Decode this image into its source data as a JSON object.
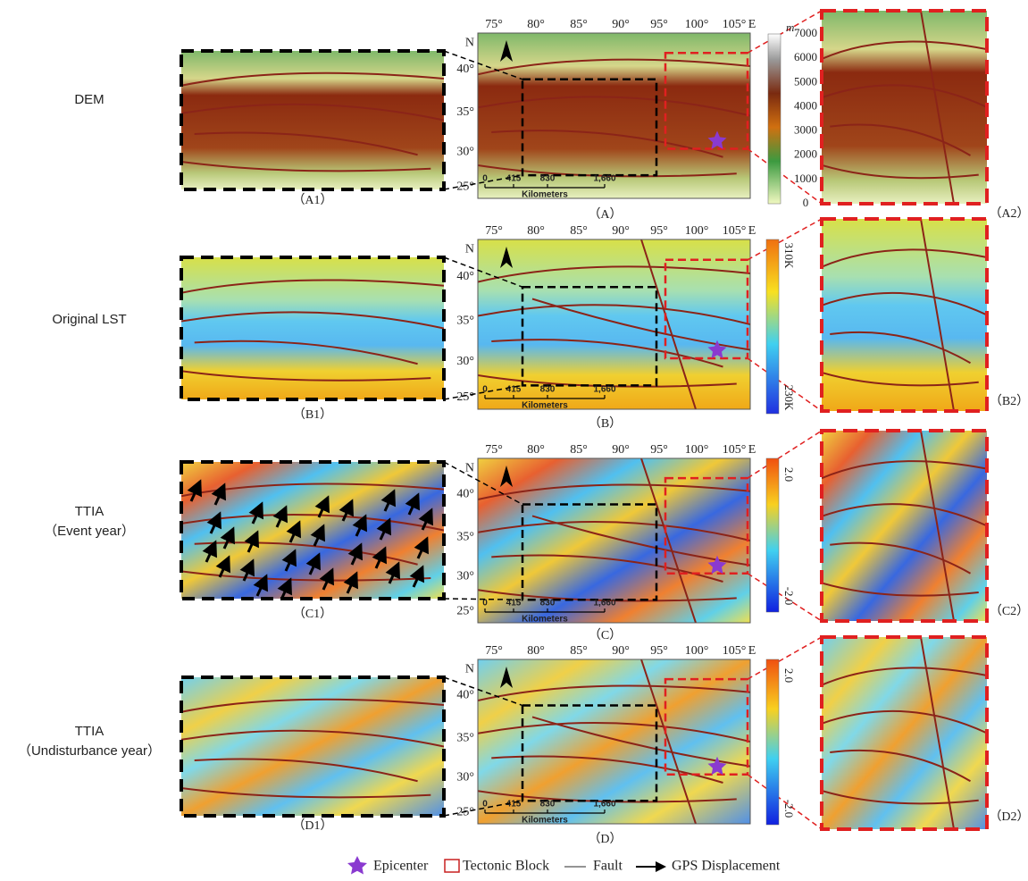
{
  "map_axes": {
    "longitudes": [
      "75°",
      "80°",
      "85°",
      "90°",
      "95°",
      "100°",
      "105°",
      "E"
    ],
    "latitudes": [
      "N",
      "40°",
      "35°",
      "30°",
      "25°"
    ],
    "scale_bar": [
      "0",
      "415",
      "830",
      "1,660"
    ],
    "scale_unit": "Kilometers"
  },
  "rows": [
    {
      "label": [
        "DEM"
      ],
      "left_caption": "（A1）",
      "center_caption": "（A）",
      "right_caption": "（A2）",
      "colorbar_unit": "m",
      "colorbar_labels": [
        "7000",
        "6000",
        "5000",
        "4000",
        "3000",
        "2000",
        "1000",
        "0"
      ]
    },
    {
      "label": [
        "Original LST"
      ],
      "left_caption": "（B1）",
      "center_caption": "（B）",
      "right_caption": "（B2）",
      "colorbar_labels": [
        "310K",
        "230K"
      ]
    },
    {
      "label": [
        "TTIA",
        "（Event year）"
      ],
      "left_caption": "（C1）",
      "center_caption": "（C）",
      "right_caption": "（C2）",
      "colorbar_labels": [
        "2.0",
        "-2.0"
      ]
    },
    {
      "label": [
        "TTIA",
        "（Undisturbance year）"
      ],
      "left_caption": "（D1）",
      "center_caption": "（D）",
      "right_caption": "（D2）",
      "colorbar_labels": [
        "2.0",
        "-2.0"
      ]
    }
  ],
  "legend": [
    "Epicenter",
    "Tectonic Block",
    "Fault",
    "GPS Displacement"
  ]
}
